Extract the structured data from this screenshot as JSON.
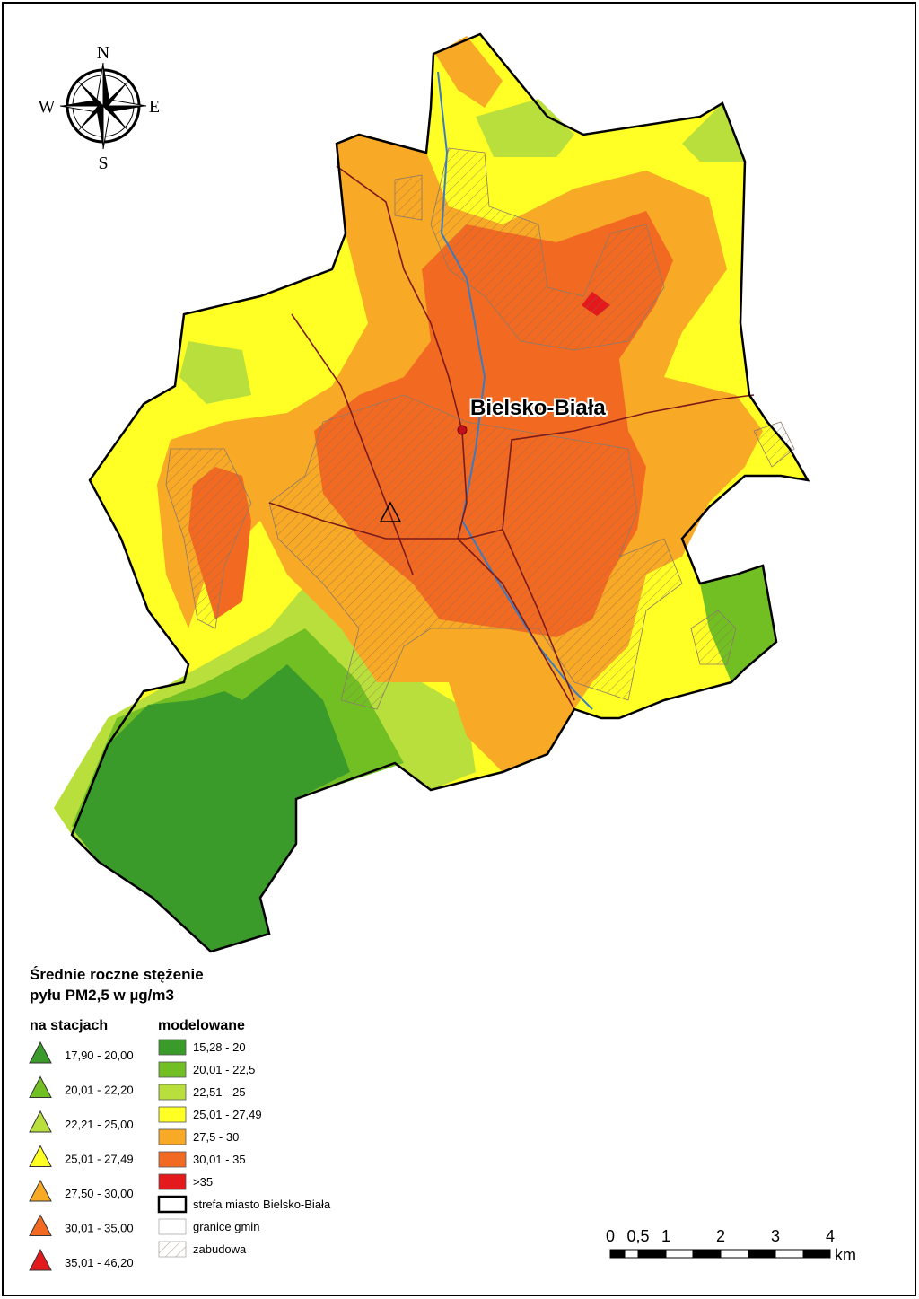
{
  "compass": {
    "north": "N",
    "east": "E",
    "south": "S",
    "west": "W"
  },
  "map": {
    "city_label": "Bielsko-Biała"
  },
  "legend": {
    "title": [
      "Średnie roczne stężenie",
      "pyłu PM2,5  w µg/m3"
    ],
    "stations": {
      "heading": "na stacjach",
      "classes": [
        {
          "label": "17,90 - 20,00",
          "color": "#3a9a2a"
        },
        {
          "label": "20,01 - 22,20",
          "color": "#72bf24"
        },
        {
          "label": "22,21 - 25,00",
          "color": "#b8df3c"
        },
        {
          "label": "25,01 - 27,49",
          "color": "#ffff26"
        },
        {
          "label": "27,50 - 30,00",
          "color": "#f8a925"
        },
        {
          "label": "30,01 - 35,00",
          "color": "#f26a22"
        },
        {
          "label": "35,01 - 46,20",
          "color": "#e3191c"
        }
      ]
    },
    "modeled": {
      "heading": "modelowane",
      "classes": [
        {
          "label": "15,28 - 20",
          "color": "#3a9a2a"
        },
        {
          "label": "20,01 - 22,5",
          "color": "#72bf24"
        },
        {
          "label": "22,51 - 25",
          "color": "#b8df3c"
        },
        {
          "label": "25,01 - 27,49",
          "color": "#ffff26"
        },
        {
          "label": "27,5 - 30",
          "color": "#f8a925"
        },
        {
          "label": "30,01 - 35",
          "color": "#f26a22"
        },
        {
          "label": ">35",
          "color": "#e3191c"
        }
      ],
      "other": [
        {
          "label": "strefa miasto Bielsko-Biała",
          "style": "thick"
        },
        {
          "label": "granice gmin",
          "style": "thin"
        },
        {
          "label": "zabudowa",
          "style": "hatch"
        }
      ]
    }
  },
  "scale_bar": {
    "labels": [
      "0",
      "0,5",
      "1",
      "2",
      "3",
      "4"
    ],
    "unit": "km"
  }
}
